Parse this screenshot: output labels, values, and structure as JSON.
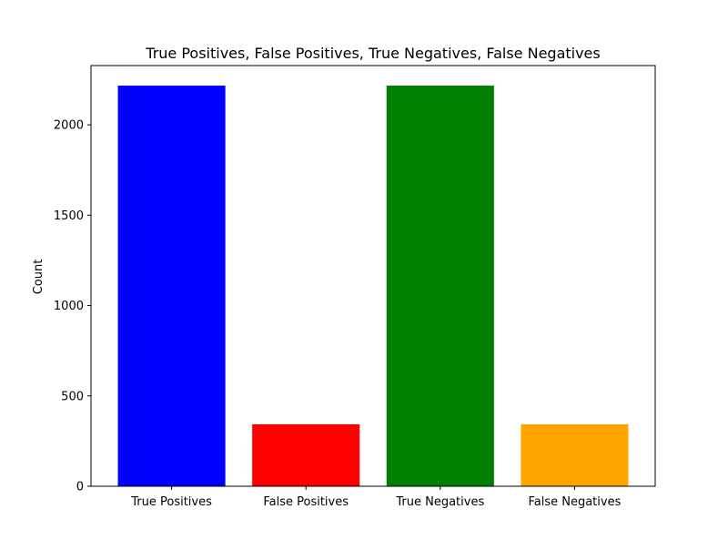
{
  "chart_data": {
    "type": "bar",
    "title": "True Positives, False Positives, True Negatives, False Negatives",
    "xlabel": "",
    "ylabel": "Count",
    "categories": [
      "True Positives",
      "False Positives",
      "True Negatives",
      "False Negatives"
    ],
    "values": [
      2217,
      343,
      2217,
      343
    ],
    "colors": [
      "#0000ff",
      "#ff0000",
      "#008000",
      "#ffa500"
    ],
    "ylim": [
      0,
      2328
    ],
    "yticks": [
      0,
      500,
      1000,
      1500,
      2000
    ],
    "grid": false,
    "legend": "none"
  }
}
